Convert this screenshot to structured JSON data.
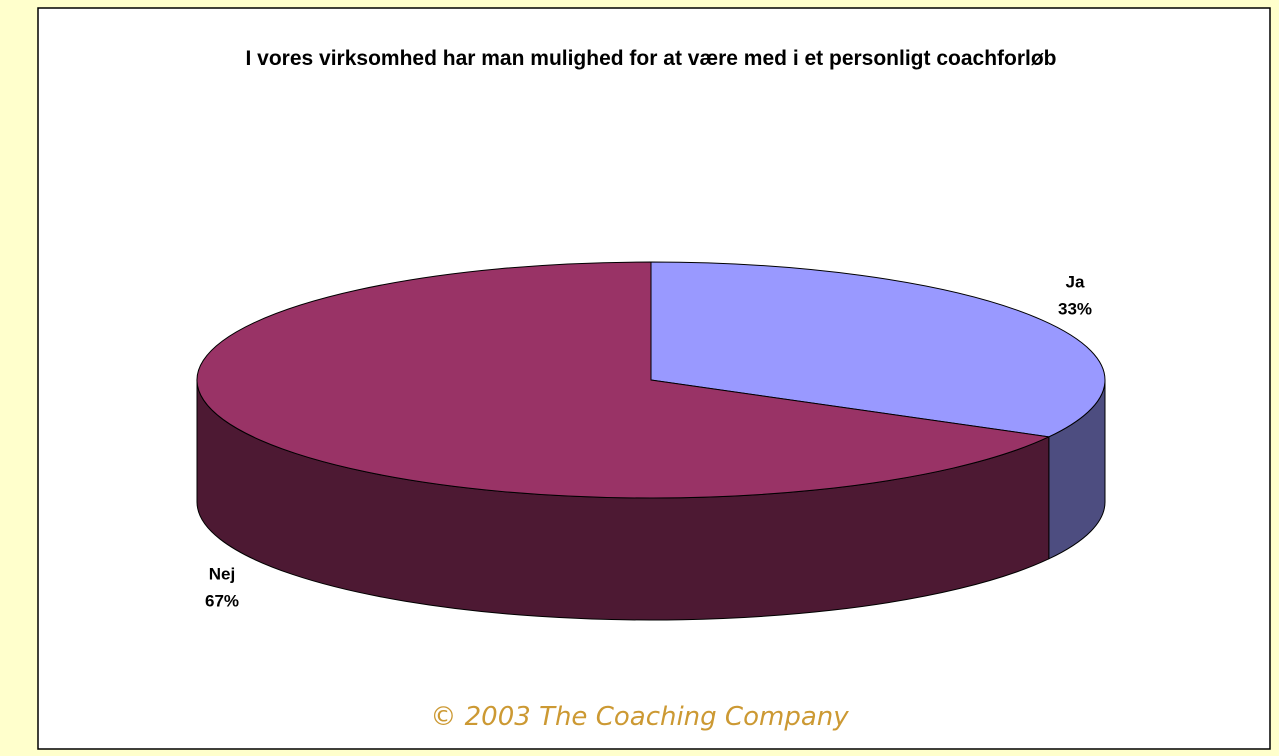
{
  "chart_data": {
    "type": "pie3d",
    "title": "I vores virksomhed har man mulighed for at være med i et personligt coachforløb",
    "categories": [
      "Ja",
      "Nej"
    ],
    "values": [
      33,
      67
    ],
    "value_labels": [
      "33%",
      "67%"
    ],
    "colors": [
      "#9999ff",
      "#993366"
    ],
    "side_colors": [
      "#4d4d80",
      "#4d1933"
    ]
  },
  "footer": "© 2003 The Coaching Company"
}
